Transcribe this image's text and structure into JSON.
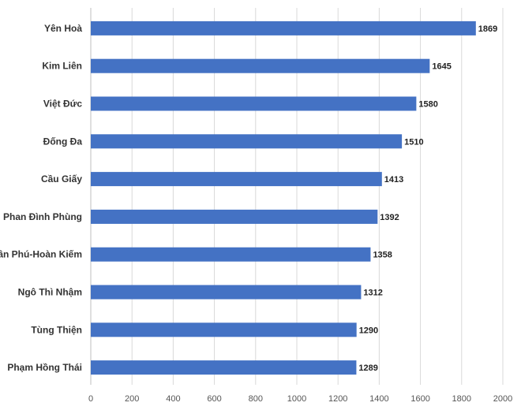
{
  "chart_data": {
    "type": "bar",
    "orientation": "horizontal",
    "categories": [
      "Yên Hoà",
      "Kim Liên",
      "Việt Đức",
      "Đống Đa",
      "Cầu Giấy",
      "Phan Đình Phùng",
      "Trần Phú-Hoàn Kiếm",
      "Ngô Thì Nhậm",
      "Tùng Thiện",
      "Phạm Hồng Thái"
    ],
    "values": [
      1869,
      1645,
      1580,
      1510,
      1413,
      1392,
      1358,
      1312,
      1290,
      1289
    ],
    "xlim": [
      0,
      2000
    ],
    "xticks": [
      0,
      200,
      400,
      600,
      800,
      1000,
      1200,
      1400,
      1600,
      1800,
      2000
    ],
    "grid": true,
    "bar_color": "#4472C4",
    "title": "",
    "xlabel": "",
    "ylabel": ""
  }
}
